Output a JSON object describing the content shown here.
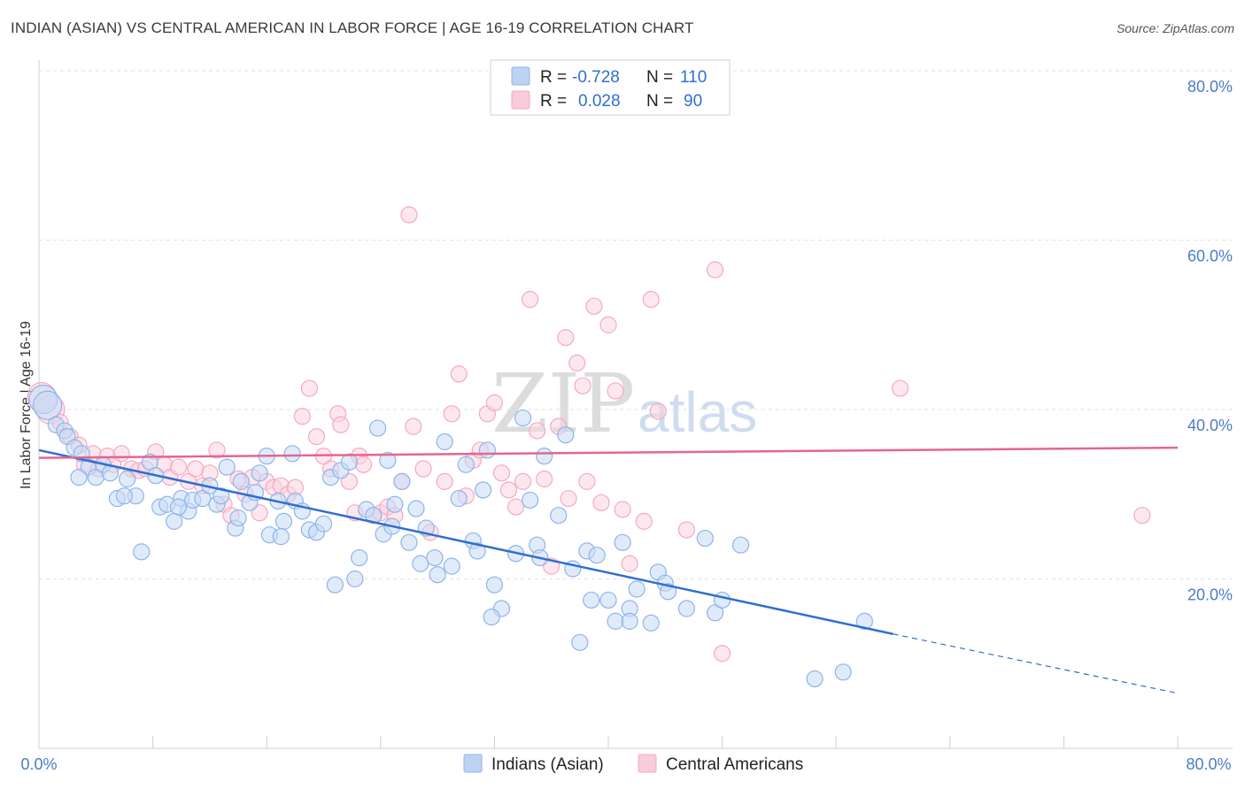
{
  "title": "INDIAN (ASIAN) VS CENTRAL AMERICAN IN LABOR FORCE | AGE 16-19 CORRELATION CHART",
  "source": "Source: ZipAtlas.com",
  "watermark": {
    "zip": "ZIP",
    "atlas": "atlas"
  },
  "legend": {
    "rows": [
      {
        "r_label": "R =",
        "r_value": "-0.728",
        "n_label": "N =",
        "n_value": "110"
      },
      {
        "r_label": "R =",
        "r_value": "0.028",
        "n_label": "N =",
        "n_value": "90"
      }
    ]
  },
  "chart_data": {
    "type": "scatter",
    "ylabel": "In Labor Force | Age 16-19",
    "xlim": [
      0,
      80
    ],
    "ylim": [
      0,
      80
    ],
    "x_tick_labels": [
      "0.0%",
      "80.0%"
    ],
    "y_ticks": [
      20,
      40,
      60,
      80
    ],
    "y_tick_labels": [
      "20.0%",
      "40.0%",
      "60.0%",
      "80.0%"
    ],
    "grid": "horizontal dashed",
    "legend_position": "top-center",
    "series": [
      {
        "name": "Indians (Asian)",
        "color": "#8fb4e8",
        "line_color": "#2f6fcf",
        "r": -0.728,
        "n": 110,
        "trend": {
          "x0": 0,
          "y0": 35.2,
          "x1": 60,
          "y1": 13.5,
          "dashed_to_x": 80,
          "dashed_to_y": 6.5
        },
        "points": [
          [
            0.3,
            41.2
          ],
          [
            0.6,
            40.5
          ],
          [
            1.2,
            38.2
          ],
          [
            1.8,
            37.5
          ],
          [
            2.0,
            36.8
          ],
          [
            2.5,
            35.5
          ],
          [
            3.0,
            34.8
          ],
          [
            3.5,
            33.2
          ],
          [
            4.0,
            32.0
          ],
          [
            4.5,
            33.5
          ],
          [
            5.0,
            32.5
          ],
          [
            5.5,
            29.5
          ],
          [
            6.2,
            31.8
          ],
          [
            6.8,
            29.8
          ],
          [
            7.2,
            23.2
          ],
          [
            7.8,
            33.8
          ],
          [
            8.2,
            32.2
          ],
          [
            8.5,
            28.5
          ],
          [
            9.0,
            28.8
          ],
          [
            9.5,
            26.8
          ],
          [
            10.0,
            29.5
          ],
          [
            10.5,
            28.0
          ],
          [
            10.8,
            29.3
          ],
          [
            11.5,
            29.5
          ],
          [
            12.0,
            31.0
          ],
          [
            12.5,
            28.8
          ],
          [
            12.8,
            29.8
          ],
          [
            13.2,
            33.2
          ],
          [
            13.8,
            26.0
          ],
          [
            14.2,
            31.5
          ],
          [
            14.8,
            29.0
          ],
          [
            15.2,
            30.2
          ],
          [
            15.5,
            32.5
          ],
          [
            16.0,
            34.5
          ],
          [
            16.2,
            25.2
          ],
          [
            16.8,
            29.2
          ],
          [
            17.2,
            26.8
          ],
          [
            17.8,
            34.8
          ],
          [
            18.0,
            29.2
          ],
          [
            18.5,
            28.0
          ],
          [
            19.0,
            25.8
          ],
          [
            19.5,
            25.5
          ],
          [
            20.0,
            26.5
          ],
          [
            20.5,
            32.0
          ],
          [
            20.8,
            19.3
          ],
          [
            21.2,
            32.8
          ],
          [
            21.8,
            33.8
          ],
          [
            22.2,
            20.0
          ],
          [
            22.5,
            22.5
          ],
          [
            23.0,
            28.2
          ],
          [
            23.5,
            27.5
          ],
          [
            23.8,
            37.8
          ],
          [
            24.2,
            25.3
          ],
          [
            24.5,
            34.0
          ],
          [
            25.0,
            28.8
          ],
          [
            25.5,
            31.5
          ],
          [
            26.0,
            24.3
          ],
          [
            26.5,
            28.3
          ],
          [
            26.8,
            21.8
          ],
          [
            27.2,
            26.0
          ],
          [
            27.8,
            22.5
          ],
          [
            28.0,
            20.5
          ],
          [
            28.5,
            36.2
          ],
          [
            29.0,
            21.5
          ],
          [
            29.5,
            29.5
          ],
          [
            30.0,
            33.5
          ],
          [
            30.5,
            24.5
          ],
          [
            30.8,
            23.3
          ],
          [
            31.2,
            30.5
          ],
          [
            31.5,
            35.2
          ],
          [
            32.0,
            19.3
          ],
          [
            32.5,
            16.5
          ],
          [
            31.8,
            15.5
          ],
          [
            33.5,
            23.0
          ],
          [
            34.0,
            39.0
          ],
          [
            34.5,
            29.3
          ],
          [
            35.0,
            24.0
          ],
          [
            35.5,
            34.5
          ],
          [
            35.2,
            22.5
          ],
          [
            36.5,
            27.5
          ],
          [
            37.0,
            37.0
          ],
          [
            37.5,
            21.2
          ],
          [
            38.0,
            12.5
          ],
          [
            38.5,
            23.3
          ],
          [
            38.8,
            17.5
          ],
          [
            39.2,
            22.8
          ],
          [
            40.0,
            17.5
          ],
          [
            40.5,
            15.0
          ],
          [
            41.0,
            24.3
          ],
          [
            41.5,
            16.5
          ],
          [
            41.5,
            15.0
          ],
          [
            42.0,
            18.8
          ],
          [
            43.0,
            14.8
          ],
          [
            43.5,
            20.8
          ],
          [
            44.0,
            19.5
          ],
          [
            44.2,
            18.5
          ],
          [
            45.5,
            16.5
          ],
          [
            46.8,
            24.8
          ],
          [
            47.5,
            16.0
          ],
          [
            48.0,
            17.5
          ],
          [
            49.3,
            24.0
          ],
          [
            54.5,
            8.2
          ],
          [
            56.5,
            9.0
          ],
          [
            58.0,
            15.0
          ],
          [
            2.8,
            32.0
          ],
          [
            6.0,
            29.8
          ],
          [
            9.8,
            28.5
          ],
          [
            14.0,
            27.2
          ],
          [
            17.0,
            25.0
          ],
          [
            24.8,
            26.2
          ]
        ]
      },
      {
        "name": "Central Americans",
        "color": "#f4a9c3",
        "line_color": "#e4668f",
        "r": 0.028,
        "n": 90,
        "trend": {
          "x0": 0,
          "y0": 34.3,
          "x1": 80,
          "y1": 35.5
        },
        "points": [
          [
            0.2,
            41.5
          ],
          [
            0.8,
            40.0
          ],
          [
            1.5,
            38.5
          ],
          [
            2.2,
            36.8
          ],
          [
            2.8,
            35.8
          ],
          [
            3.2,
            33.5
          ],
          [
            3.8,
            34.8
          ],
          [
            4.2,
            33.0
          ],
          [
            4.8,
            34.5
          ],
          [
            5.2,
            33.5
          ],
          [
            5.8,
            34.8
          ],
          [
            6.5,
            33.0
          ],
          [
            7.0,
            32.8
          ],
          [
            7.5,
            33.0
          ],
          [
            8.2,
            35.0
          ],
          [
            8.8,
            33.5
          ],
          [
            9.2,
            32.0
          ],
          [
            9.8,
            33.2
          ],
          [
            10.5,
            31.5
          ],
          [
            11.0,
            33.0
          ],
          [
            11.5,
            31.0
          ],
          [
            12.0,
            32.5
          ],
          [
            12.5,
            35.2
          ],
          [
            13.0,
            28.8
          ],
          [
            13.5,
            27.5
          ],
          [
            14.0,
            31.8
          ],
          [
            14.5,
            30.0
          ],
          [
            15.0,
            32.0
          ],
          [
            15.5,
            27.8
          ],
          [
            16.0,
            31.5
          ],
          [
            16.5,
            30.8
          ],
          [
            17.0,
            31.0
          ],
          [
            17.5,
            30.0
          ],
          [
            18.0,
            30.8
          ],
          [
            18.5,
            39.2
          ],
          [
            19.0,
            42.5
          ],
          [
            19.5,
            36.8
          ],
          [
            20.0,
            34.5
          ],
          [
            20.5,
            33.0
          ],
          [
            21.0,
            39.5
          ],
          [
            21.2,
            38.2
          ],
          [
            21.8,
            31.5
          ],
          [
            22.2,
            27.8
          ],
          [
            22.5,
            34.5
          ],
          [
            22.8,
            33.5
          ],
          [
            23.5,
            27.5
          ],
          [
            24.0,
            27.8
          ],
          [
            24.5,
            28.5
          ],
          [
            25.0,
            27.5
          ],
          [
            25.5,
            31.5
          ],
          [
            26.0,
            63.0
          ],
          [
            26.3,
            38.0
          ],
          [
            27.0,
            33.0
          ],
          [
            27.5,
            25.5
          ],
          [
            28.5,
            31.5
          ],
          [
            29.0,
            39.5
          ],
          [
            29.5,
            44.2
          ],
          [
            30.0,
            29.8
          ],
          [
            30.5,
            34.0
          ],
          [
            31.0,
            35.2
          ],
          [
            31.5,
            39.5
          ],
          [
            32.0,
            40.8
          ],
          [
            32.5,
            32.5
          ],
          [
            33.0,
            30.5
          ],
          [
            33.5,
            28.5
          ],
          [
            34.0,
            31.5
          ],
          [
            34.5,
            53.0
          ],
          [
            35.0,
            37.5
          ],
          [
            35.5,
            31.8
          ],
          [
            36.0,
            21.5
          ],
          [
            36.5,
            38.0
          ],
          [
            37.0,
            48.5
          ],
          [
            37.2,
            29.5
          ],
          [
            37.8,
            45.5
          ],
          [
            38.2,
            42.8
          ],
          [
            38.5,
            31.5
          ],
          [
            39.0,
            52.2
          ],
          [
            39.5,
            29.0
          ],
          [
            40.0,
            50.0
          ],
          [
            40.5,
            42.2
          ],
          [
            41.0,
            28.2
          ],
          [
            41.5,
            21.8
          ],
          [
            42.5,
            26.8
          ],
          [
            43.0,
            53.0
          ],
          [
            43.5,
            39.8
          ],
          [
            45.5,
            25.8
          ],
          [
            47.5,
            56.5
          ],
          [
            48.0,
            11.2
          ],
          [
            60.5,
            42.5
          ],
          [
            77.5,
            27.5
          ]
        ]
      }
    ]
  }
}
